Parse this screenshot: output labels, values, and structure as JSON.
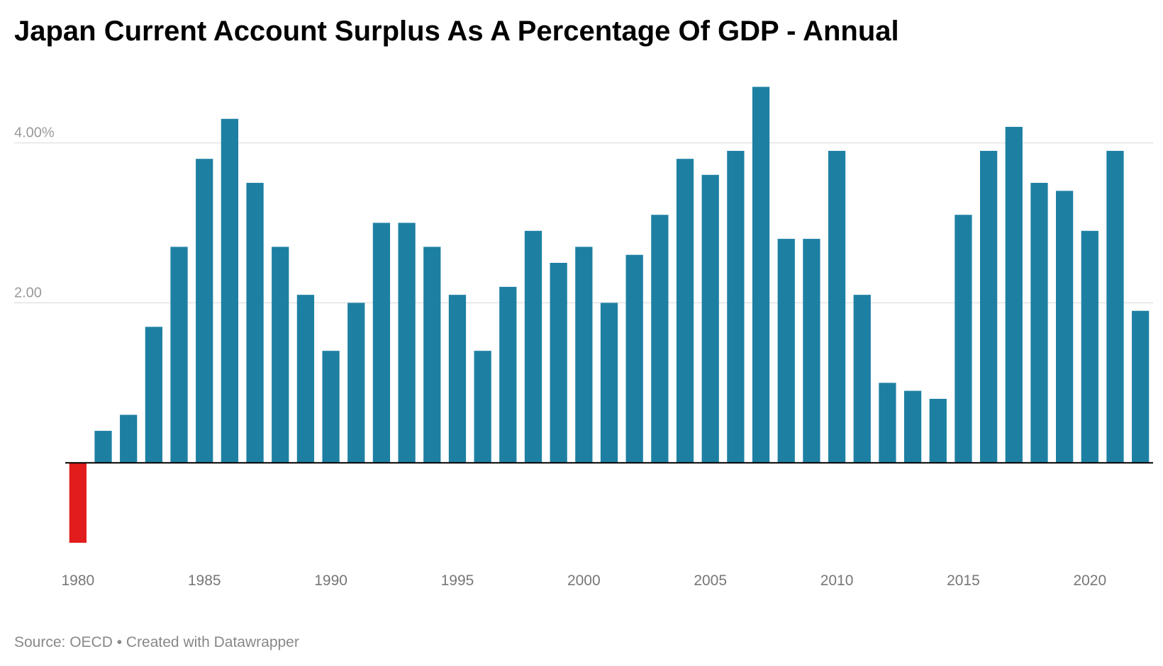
{
  "chart_data": {
    "type": "bar",
    "title": "Japan Current Account Surplus As A Percentage Of GDP - Annual",
    "xlabel": "",
    "ylabel": "",
    "categories": [
      "1980",
      "1981",
      "1982",
      "1983",
      "1984",
      "1985",
      "1986",
      "1987",
      "1988",
      "1989",
      "1990",
      "1991",
      "1992",
      "1993",
      "1994",
      "1995",
      "1996",
      "1997",
      "1998",
      "1999",
      "2000",
      "2001",
      "2002",
      "2003",
      "2004",
      "2005",
      "2006",
      "2007",
      "2008",
      "2009",
      "2010",
      "2011",
      "2012",
      "2013",
      "2014",
      "2015",
      "2016",
      "2017",
      "2018",
      "2019",
      "2020",
      "2021",
      "2022"
    ],
    "values": [
      -1.0,
      0.4,
      0.6,
      1.7,
      2.7,
      3.8,
      4.3,
      3.5,
      2.7,
      2.1,
      1.4,
      2.0,
      3.0,
      3.0,
      2.7,
      2.1,
      1.4,
      2.2,
      2.9,
      2.5,
      2.7,
      2.0,
      2.6,
      3.1,
      3.8,
      3.6,
      3.9,
      4.7,
      2.8,
      2.8,
      3.9,
      2.1,
      1.0,
      0.9,
      0.8,
      3.1,
      3.9,
      4.2,
      3.5,
      3.4,
      2.9,
      3.9,
      1.9
    ],
    "x_tick_labels": [
      "1980",
      "1985",
      "1990",
      "1995",
      "2000",
      "2005",
      "2010",
      "2015",
      "2020"
    ],
    "y_tick_values": [
      2,
      4
    ],
    "y_tick_labels": [
      "2.00",
      "4.00%"
    ],
    "ylim": [
      -1.3,
      4.9
    ],
    "grid": true,
    "colors": {
      "positive": "#1d80a3",
      "negative": "#e21c1c",
      "gridline": "#e3e3e3",
      "baseline": "#000000"
    }
  },
  "footer": {
    "source": "Source: OECD • Created with Datawrapper"
  }
}
